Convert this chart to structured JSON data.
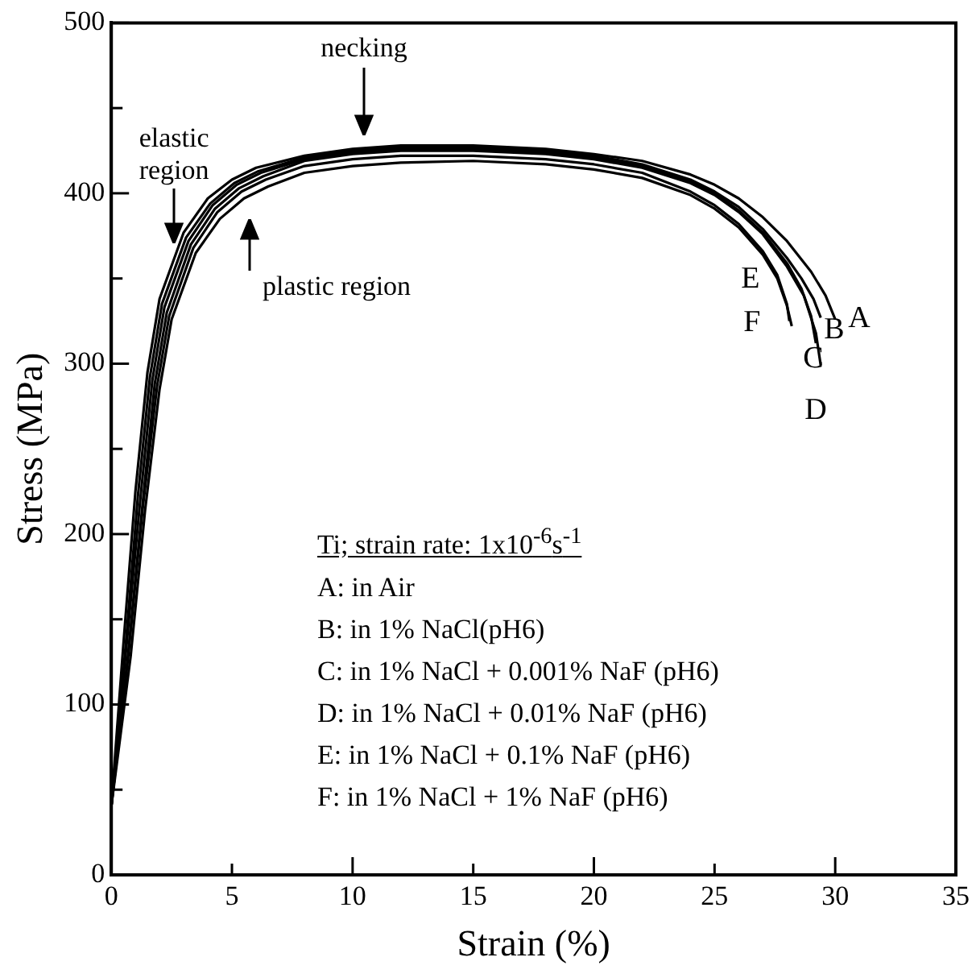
{
  "chart_data": {
    "type": "line",
    "xlabel": "Strain (%)",
    "ylabel": "Stress (MPa)",
    "xlim": [
      0,
      35
    ],
    "xticks": [
      0,
      5,
      10,
      15,
      20,
      25,
      30,
      35
    ],
    "ylim": [
      0,
      500
    ],
    "yticks": [
      0,
      {
        "value": 50,
        "label": null
      },
      100,
      {
        "value": 150,
        "label": null
      },
      200,
      {
        "value": 250,
        "label": null
      },
      300,
      {
        "value": 350,
        "label": null
      },
      400,
      {
        "value": 450,
        "label": null
      },
      500
    ],
    "grid": false,
    "marker": "none",
    "line_style": "solid",
    "legend_title": "Ti; strain rate: 1x10$^{-6}$s$^{-1}$",
    "annotations": [
      "A: in Air",
      "B: in 1% NaCl(pH6)",
      "C: in 1% NaCl + 0.001% NaF (pH6)",
      "D: in 1% NaCl + 0.01% NaF (pH6)",
      "E: in 1% NaCl + 0.1% NaF (pH6)",
      "F: in 1% NaCl + 1% NaF (pH6)",
      "necking",
      "plastic region",
      {
        "text": "elastic region",
        "x": 2.6,
        "y": 371
      }
    ],
    "series": [
      {
        "name": "A",
        "color": "#000000",
        "x": [
          0,
          0.5,
          1,
          1.5,
          2,
          3,
          4,
          5,
          6,
          8,
          10,
          12,
          15,
          18,
          20,
          22,
          24,
          25,
          26,
          27,
          28,
          29,
          29.6,
          30.0
        ],
        "values": [
          40,
          135,
          225,
          295,
          338,
          377,
          397,
          408,
          415,
          422,
          426,
          428,
          428,
          426,
          423,
          419,
          411,
          405,
          397,
          386,
          372,
          354,
          340,
          326
        ]
      },
      {
        "name": "B",
        "color": "#000000",
        "x": [
          0,
          0.6,
          1.1,
          1.6,
          2.1,
          3.1,
          4.1,
          5.1,
          6.1,
          8,
          10,
          12,
          15,
          18,
          20,
          22,
          24,
          25,
          26,
          27,
          28,
          28.6,
          29.1,
          29.4
        ],
        "values": [
          40,
          135,
          222,
          292,
          335,
          374,
          394,
          406,
          413,
          421,
          425,
          427,
          427,
          425,
          422,
          417,
          408,
          401,
          392,
          379,
          362,
          350,
          338,
          327
        ]
      },
      {
        "name": "C",
        "color": "#000000",
        "x": [
          0,
          0.6,
          1.2,
          1.7,
          2.2,
          3.2,
          4.2,
          5.2,
          6.2,
          8,
          10,
          12,
          15,
          18,
          20,
          22,
          24,
          25,
          26,
          27,
          28,
          28.6,
          29.0,
          29.2
        ],
        "values": [
          40,
          130,
          220,
          290,
          333,
          372,
          393,
          405,
          412,
          420,
          424,
          426,
          426,
          424,
          421,
          416,
          407,
          400,
          390,
          377,
          359,
          344,
          328,
          312
        ]
      },
      {
        "name": "D",
        "color": "#000000",
        "x": [
          0,
          0.7,
          1.3,
          1.8,
          2.3,
          3.3,
          4.3,
          5.3,
          6.3,
          8,
          10,
          12,
          15,
          18,
          20,
          22,
          24,
          25,
          26,
          27,
          28,
          28.7,
          29.2,
          29.4
        ],
        "values": [
          40,
          130,
          218,
          288,
          330,
          370,
          391,
          403,
          410,
          419,
          423,
          425,
          425,
          423,
          420,
          415,
          406,
          399,
          389,
          376,
          357,
          340,
          318,
          299
        ]
      },
      {
        "name": "E",
        "color": "#000000",
        "x": [
          0,
          0.7,
          1.3,
          1.9,
          2.4,
          3.4,
          4.4,
          5.4,
          6.4,
          8,
          10,
          12,
          15,
          18,
          20,
          22,
          24,
          25,
          26,
          27,
          27.6,
          28.0,
          28.1
        ],
        "values": [
          40,
          128,
          215,
          287,
          328,
          368,
          389,
          401,
          408,
          416,
          420,
          422,
          422,
          420,
          417,
          412,
          401,
          393,
          382,
          366,
          352,
          335,
          325
        ]
      },
      {
        "name": "F",
        "color": "#000000",
        "x": [
          0,
          0.8,
          1.4,
          2.0,
          2.5,
          3.5,
          4.5,
          5.5,
          6.5,
          8,
          10,
          12,
          15,
          18,
          20,
          22,
          24,
          25,
          26,
          27,
          27.6,
          28.0,
          28.2
        ],
        "values": [
          40,
          128,
          214,
          285,
          326,
          365,
          385,
          397,
          404,
          412,
          416,
          418,
          419,
          417,
          414,
          409,
          399,
          391,
          380,
          364,
          350,
          334,
          322
        ]
      }
    ]
  }
}
